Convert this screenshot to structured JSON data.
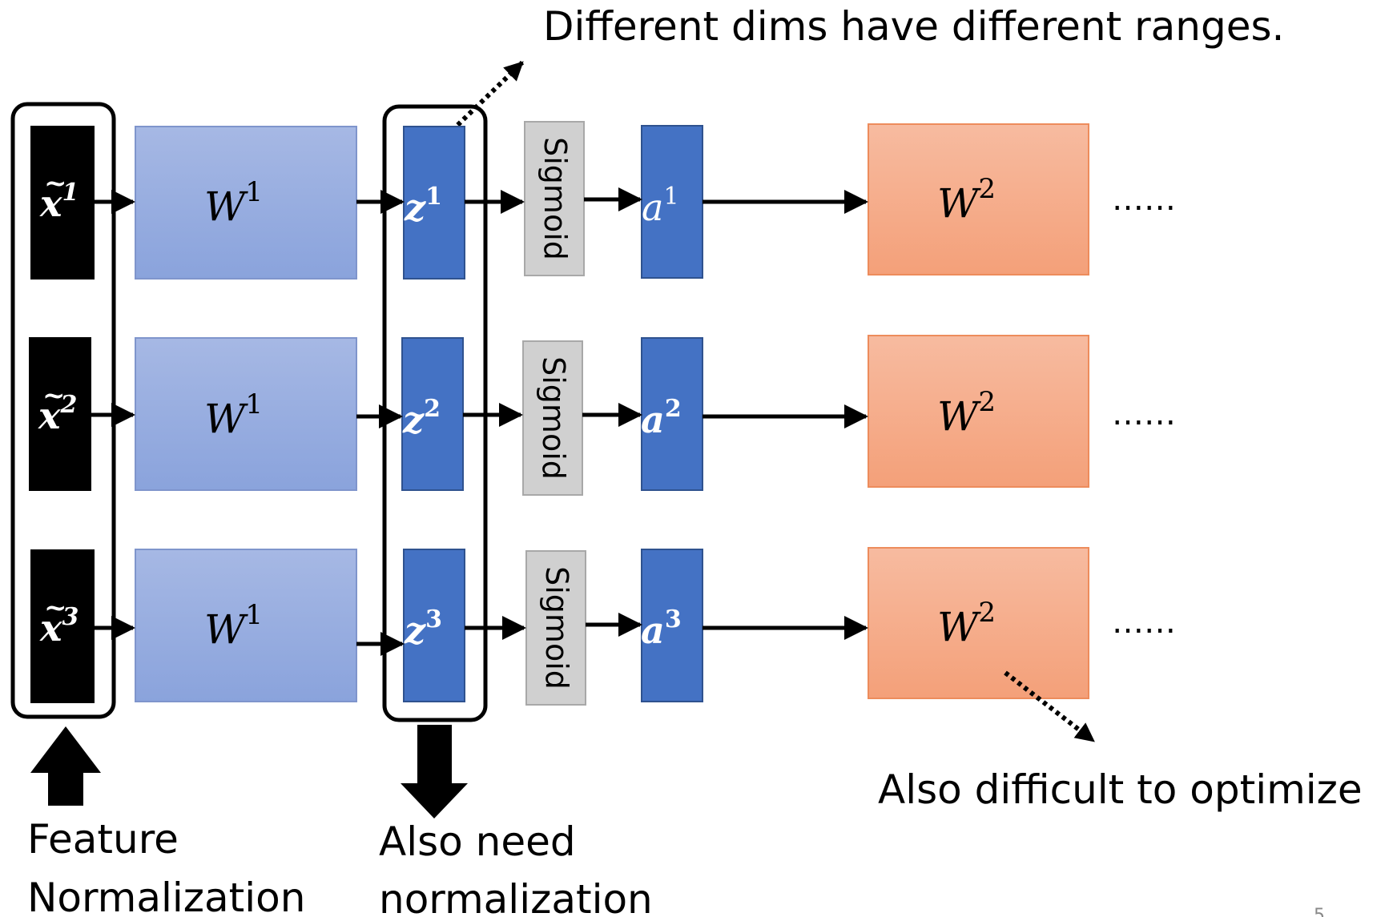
{
  "annotations": {
    "top": "Different dims have different ranges.",
    "right": "Also difficult to optimize",
    "feature_norm_line1": "Feature",
    "feature_norm_line2": "Normalization",
    "also_need_line1": "Also need",
    "also_need_line2": "normalization",
    "page_number": "5"
  },
  "rows": [
    {
      "x_sup": "1",
      "w1_base": "W",
      "w1_sup": "1",
      "z_base": "z",
      "z_sup": "1",
      "activation": "Sigmoid",
      "a_base": "a",
      "a_sup": "1",
      "w2_base": "W",
      "w2_sup": "2",
      "continuation": "……"
    },
    {
      "x_sup": "2",
      "w1_base": "W",
      "w1_sup": "1",
      "z_base": "z",
      "z_sup": "2",
      "activation": "Sigmoid",
      "a_base": "a",
      "a_sup": "2",
      "w2_base": "W",
      "w2_sup": "2",
      "continuation": "……"
    },
    {
      "x_sup": "3",
      "w1_base": "W",
      "w1_sup": "1",
      "z_base": "z",
      "z_sup": "3",
      "activation": "Sigmoid",
      "a_base": "a",
      "a_sup": "3",
      "w2_base": "W",
      "w2_sup": "2",
      "continuation": "……"
    }
  ],
  "input_symbol": {
    "base": "x",
    "tilde": "~"
  },
  "colors": {
    "input_box": "#000000",
    "w1_gradient_top": "#a6b8e4",
    "w1_gradient_bottom": "#8aa3dc",
    "w1_border": "#7f95cc",
    "z_box": "#4472c4",
    "z_border": "#2f528f",
    "sigmoid_box": "#d0d0d0",
    "sigmoid_border": "#a8a8a8",
    "a_box": "#4472c4",
    "w2_gradient_top": "#f7bba0",
    "w2_gradient_bottom": "#f4a079",
    "w2_border": "#ed8c5c",
    "arrow": "#000000"
  }
}
